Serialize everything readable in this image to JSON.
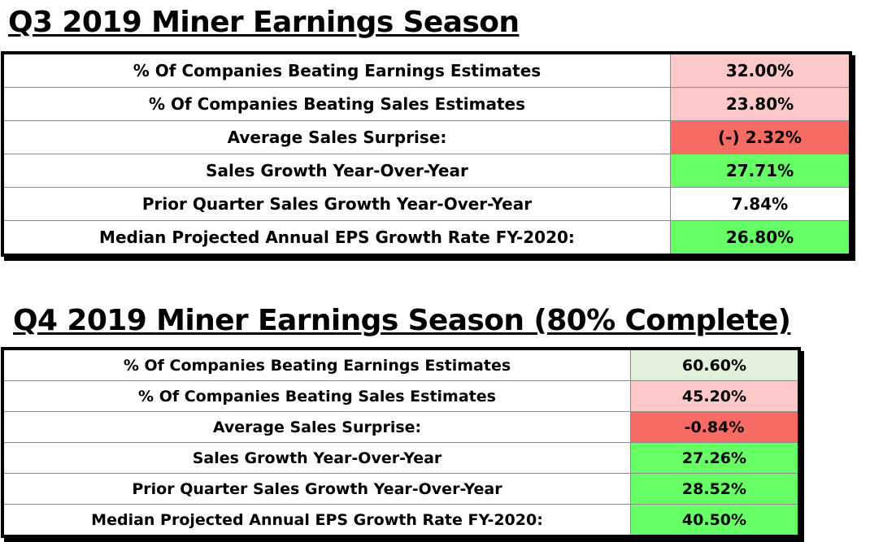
{
  "q3": {
    "title": "Q3 2019 Miner Earnings Season",
    "rows": [
      {
        "label": "% Of Companies Beating Earnings Estimates",
        "value": "32.00%",
        "fill": "pink",
        "color": "#fcc8c8"
      },
      {
        "label": "% Of Companies Beating Sales Estimates",
        "value": "23.80%",
        "fill": "pink",
        "color": "#fcc8c8"
      },
      {
        "label": "Average Sales Surprise:",
        "value": "(-) 2.32%",
        "fill": "red",
        "color": "#f76b65"
      },
      {
        "label": "Sales Growth Year-Over-Year",
        "value": "27.71%",
        "fill": "green",
        "color": "#66ff66"
      },
      {
        "label": "Prior Quarter Sales Growth Year-Over-Year",
        "value": "7.84%",
        "fill": "white",
        "color": "#ffffff"
      },
      {
        "label": "Median Projected Annual EPS Growth Rate FY-2020:",
        "value": "26.80%",
        "fill": "green",
        "color": "#66ff66"
      }
    ]
  },
  "q4": {
    "title": "Q4 2019 Miner Earnings Season (80% Complete)",
    "rows": [
      {
        "label": "% Of Companies Beating Earnings Estimates",
        "value": "60.60%",
        "fill": "lightgreen",
        "color": "#e2efda"
      },
      {
        "label": "% Of Companies Beating Sales Estimates",
        "value": "45.20%",
        "fill": "pink",
        "color": "#fcc8c8"
      },
      {
        "label": "Average Sales Surprise:",
        "value": "-0.84%",
        "fill": "red",
        "color": "#f76b65"
      },
      {
        "label": "Sales Growth Year-Over-Year",
        "value": "27.26%",
        "fill": "green",
        "color": "#66ff66"
      },
      {
        "label": "Prior Quarter Sales Growth Year-Over-Year",
        "value": "28.52%",
        "fill": "green",
        "color": "#66ff66"
      },
      {
        "label": "Median Projected Annual EPS Growth Rate FY-2020:",
        "value": "40.50%",
        "fill": "green",
        "color": "#66ff66"
      }
    ]
  }
}
